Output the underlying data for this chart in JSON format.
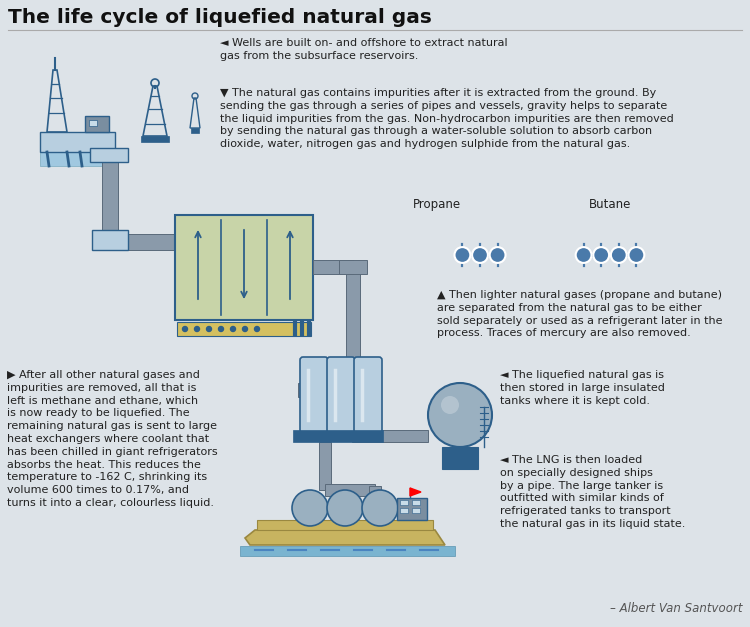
{
  "title": "The life cycle of liquefied natural gas",
  "bg_color": "#dde3e8",
  "title_color": "#111111",
  "icon_color": "#2d5f8a",
  "icon_fill": "#b8cfe0",
  "icon_fill2": "#c8d4a8",
  "pipe_color": "#8a9aaa",
  "text_color": "#222222",
  "credit": "– Albert Van Santvoort",
  "step1": "◄ Wells are built on- and offshore to extract natural\ngas from the subsurface reservoirs.",
  "step2": "▼ The natural gas contains impurities after it is extracted from the ground. By\nsending the gas through a series of pipes and vessels, gravity helps to separate\nthe liquid impurities from the gas. Non-hydrocarbon impurities are then removed\nby sending the natural gas through a water-soluble solution to absorb carbon\ndioxide, water, nitrogen gas and hydrogen sulphide from the natural gas.",
  "propane_label": "Propane",
  "butane_label": "Butane",
  "step3": "▲ Then lighter natural gases (propane and butane)\nare separated from the natural gas to be either\nsold separately or used as a refrigerant later in the\nprocess. Traces of mercury are also removed.",
  "step4": "▶ After all other natural gases and\nimpurities are removed, all that is\nleft is methane and ethane, which\nis now ready to be liquefied. The\nremaining natural gas is sent to large\nheat exchangers where coolant that\nhas been chilled in giant refrigerators\nabsorbs the heat. This reduces the\ntemperature to -162 C, shrinking its\nvolume 600 times to 0.17%, and\nturns it into a clear, colourless liquid.",
  "step5": "◄ The liquefied natural gas is\nthen stored in large insulated\ntanks where it is kept cold.",
  "step6": "◄ The LNG is then loaded\non specially designed ships\nby a pipe. The large tanker is\noutfitted with similar kinds of\nrefrigerated tanks to transport\nthe natural gas in its liquid state."
}
